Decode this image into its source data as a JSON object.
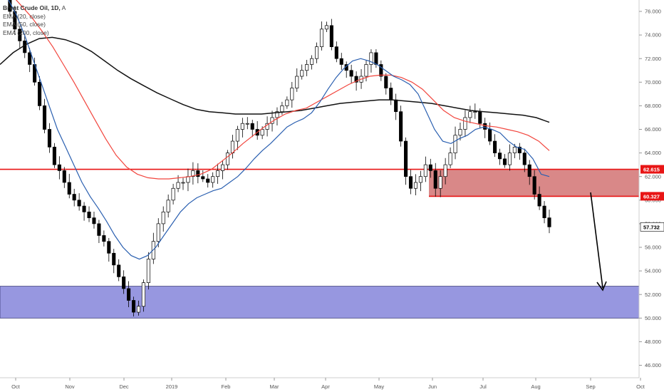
{
  "legend": {
    "title": "Brent Crude Oil, 1D,",
    "suffix": "A",
    "ema20": "EMA (20, close)",
    "ema50": "EMA (50, close)",
    "ema200": "EMA (200, close)"
  },
  "colors": {
    "up": "#ffffff",
    "down": "#000000",
    "ema20": "#2a5fb0",
    "ema50": "#f2453d",
    "ema200": "#111111",
    "resistance_line": "#e81515",
    "resistance_zone": "#d98888",
    "support_zone": "#9797e0",
    "arrow": "#000000"
  },
  "chart_data": {
    "type": "candlestick",
    "title": "Brent Crude Oil, 1D",
    "ylim": [
      46,
      77
    ],
    "y_ticks": [
      "76.000",
      "74.000",
      "72.000",
      "70.000",
      "68.000",
      "66.000",
      "64.000",
      "62.000",
      "60.000",
      "58.000",
      "56.000",
      "54.000",
      "52.000",
      "50.000",
      "48.000",
      "46.000"
    ],
    "x_ticks": [
      "Oct",
      "Nov",
      "Dec",
      "2019",
      "Feb",
      "Mar",
      "Apr",
      "May",
      "Jun",
      "Jul",
      "Aug",
      "Sep",
      "Oct"
    ],
    "price_labels": {
      "resistance_top": "62.615",
      "resistance_bottom": "60.327",
      "last_price": "57.732"
    },
    "last_price": 57.732,
    "levels": {
      "resistance_top": 62.615,
      "resistance_bottom": 60.327
    },
    "support_zone": [
      50.0,
      52.7
    ],
    "series": [
      {
        "name": "Price",
        "values": [
          77.8,
          77.5,
          76.0,
          74.5,
          73.5,
          72.5,
          71.5,
          70.0,
          68.0,
          66.0,
          64.5,
          63.0,
          62.5,
          61.5,
          60.5,
          60.0,
          59.5,
          59.0,
          58.5,
          58.0,
          57.0,
          56.5,
          55.5,
          54.5,
          53.5,
          52.5,
          51.5,
          50.5,
          51.0,
          53.0,
          55.0,
          56.5,
          58.0,
          59.0,
          60.0,
          61.0,
          61.5,
          61.5,
          62.0,
          62.5,
          62.0,
          61.8,
          61.5,
          62.0,
          62.5,
          63.0,
          64.0,
          65.0,
          66.0,
          66.5,
          66.5,
          66.0,
          65.5,
          66.0,
          66.5,
          67.0,
          67.5,
          68.0,
          68.5,
          69.5,
          70.5,
          71.0,
          71.5,
          72.0,
          73.0,
          74.5,
          74.8,
          73.0,
          72.0,
          71.5,
          71.0,
          70.5,
          70.0,
          70.5,
          71.5,
          72.5,
          71.5,
          70.5,
          69.5,
          68.5,
          67.5,
          65.0,
          62.0,
          61.0,
          61.5,
          62.0,
          63.0,
          62.5,
          61.0,
          62.0,
          63.0,
          64.0,
          65.5,
          66.0,
          67.0,
          67.5,
          67.5,
          66.5,
          66.0,
          65.0,
          64.0,
          63.5,
          63.0,
          64.0,
          64.5,
          64.0,
          63.0,
          62.0,
          60.5,
          59.5,
          58.5,
          57.732
        ]
      },
      {
        "name": "EMA (20, close)",
        "values": [
          77.8,
          77.0,
          75.7,
          74.0,
          72.0,
          70.0,
          68.0,
          66.0,
          64.5,
          63.0,
          61.5,
          60.3,
          59.3,
          58.2,
          57.0,
          56.0,
          55.3,
          55.0,
          55.3,
          56.0,
          57.0,
          58.0,
          59.0,
          59.7,
          60.2,
          60.5,
          60.8,
          61.0,
          61.5,
          62.0,
          62.7,
          63.5,
          64.2,
          64.8,
          65.5,
          66.2,
          66.6,
          66.9,
          67.4,
          68.3,
          69.4,
          70.4,
          71.2,
          71.8,
          72.0,
          71.8,
          71.5,
          71.0,
          70.5,
          70.2,
          69.8,
          69.0,
          67.5,
          66.0,
          65.0,
          64.8,
          65.2,
          65.5,
          66.0,
          66.2,
          66.0,
          65.7,
          65.0,
          64.5,
          64.3,
          63.5,
          62.2,
          62.0
        ]
      },
      {
        "name": "EMA (50, close)",
        "values": [
          78.0,
          77.5,
          76.5,
          75.5,
          74.3,
          73.0,
          71.5,
          70.0,
          68.4,
          66.8,
          65.2,
          63.8,
          62.8,
          62.2,
          61.9,
          61.8,
          61.8,
          61.9,
          62.0,
          62.2,
          62.6,
          63.3,
          64.0,
          64.8,
          65.5,
          66.2,
          66.8,
          67.3,
          67.6,
          67.8,
          68.3,
          68.8,
          69.3,
          69.8,
          70.2,
          70.5,
          70.6,
          70.6,
          70.4,
          70.0,
          69.4,
          68.5,
          67.6,
          67.0,
          66.7,
          66.5,
          66.3,
          66.2,
          66.0,
          65.8,
          65.5,
          65.0,
          64.2
        ]
      },
      {
        "name": "EMA (200, close)",
        "values": [
          71.5,
          72.5,
          73.2,
          73.7,
          73.8,
          73.6,
          73.2,
          72.6,
          71.8,
          71.0,
          70.3,
          69.7,
          69.1,
          68.6,
          68.1,
          67.7,
          67.5,
          67.4,
          67.3,
          67.3,
          67.3,
          67.4,
          67.5,
          67.6,
          67.8,
          68.0,
          68.2,
          68.3,
          68.4,
          68.5,
          68.5,
          68.4,
          68.3,
          68.2,
          68.0,
          67.8,
          67.6,
          67.5,
          67.4,
          67.3,
          67.2,
          67.0,
          66.6
        ]
      }
    ],
    "annotations": [
      "horizontal line 62.615",
      "shaded resistance zone 60.327–62.615",
      "shaded support zone ~50.0–52.7",
      "downward arrow pointing toward support zone"
    ]
  }
}
